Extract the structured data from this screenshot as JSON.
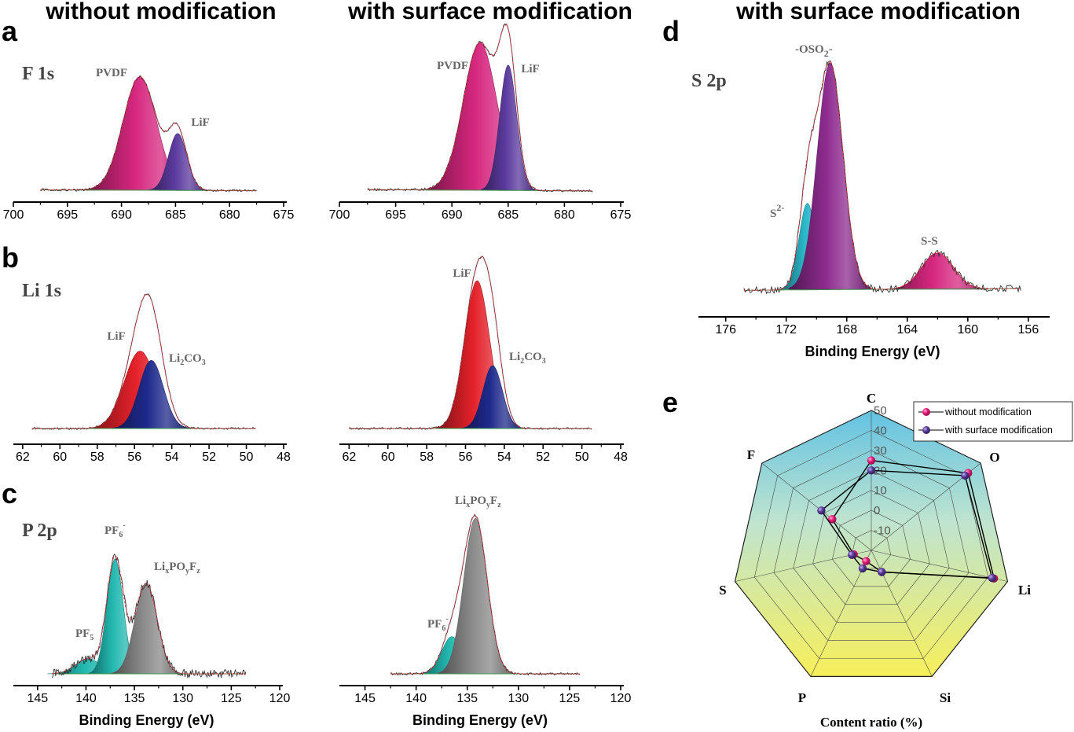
{
  "titles": {
    "left": "without modification",
    "middle": "with surface modification",
    "right": "with surface modification"
  },
  "panel_letters": [
    "a",
    "b",
    "c",
    "d",
    "e"
  ],
  "colors": {
    "pvdf": "#d6277f",
    "lif_fs": "#5b3a9e",
    "lif_li": "#e4212a",
    "li2co3": "#1f2a8c",
    "pf6": "#22b8b0",
    "lixpoyfz": "#8a8a8a",
    "pf5": "#22b8b0",
    "s2": "#2bb8c9",
    "oso2": "#8e2c8f",
    "ss": "#d6277f",
    "without": "#e8197a",
    "with": "#5a3b9a"
  },
  "chart_data": [
    {
      "id": "a-left",
      "type": "area",
      "element": "F 1s",
      "x_ticks": [
        700,
        695,
        690,
        685,
        680,
        675
      ],
      "xlim": [
        700,
        675
      ],
      "peaks": [
        {
          "label": "PVDF",
          "center": 688.3,
          "height": 0.76,
          "sigma": 1.55,
          "color_key": "pvdf"
        },
        {
          "label": "LiF",
          "center": 684.8,
          "height": 0.38,
          "sigma": 0.85,
          "color_key": "lif_fs"
        }
      ]
    },
    {
      "id": "a-right",
      "type": "area",
      "element": "",
      "x_ticks": [
        700,
        695,
        690,
        685,
        680,
        675
      ],
      "xlim": [
        700,
        675
      ],
      "peaks": [
        {
          "label": "PVDF",
          "center": 687.5,
          "height": 0.92,
          "sigma": 1.5,
          "color_key": "pvdf"
        },
        {
          "label": "LiF",
          "center": 685.0,
          "height": 0.78,
          "sigma": 0.75,
          "color_key": "lif_fs"
        }
      ]
    },
    {
      "id": "b-left",
      "type": "area",
      "element": "Li 1s",
      "x_ticks": [
        62,
        60,
        58,
        56,
        54,
        52,
        50,
        48
      ],
      "xlim": [
        62.5,
        48
      ],
      "peaks": [
        {
          "label": "LiF",
          "center": 55.7,
          "height": 0.5,
          "sigma": 0.85,
          "color_key": "lif_li"
        },
        {
          "label": "Li2CO3",
          "center": 55.1,
          "height": 0.44,
          "sigma": 0.65,
          "color_key": "li2co3"
        }
      ]
    },
    {
      "id": "b-right",
      "type": "area",
      "element": "",
      "x_ticks": [
        62,
        60,
        58,
        56,
        54,
        52,
        50,
        48
      ],
      "xlim": [
        62.5,
        48
      ],
      "peaks": [
        {
          "label": "LiF",
          "center": 55.4,
          "height": 0.8,
          "sigma": 0.65,
          "color_key": "lif_li"
        },
        {
          "label": "Li2CO3",
          "center": 54.6,
          "height": 0.34,
          "sigma": 0.5,
          "color_key": "li2co3"
        }
      ]
    },
    {
      "id": "c-left",
      "type": "area",
      "element": "P 2p",
      "x_ticks": [
        145,
        140,
        135,
        130,
        125,
        120
      ],
      "xlim": [
        147.5,
        120
      ],
      "xlabel": "Binding Energy (eV)",
      "peaks": [
        {
          "label": "PF5",
          "center": 139.8,
          "height": 0.1,
          "sigma": 1.3,
          "color_key": "pf5"
        },
        {
          "label": "PF6-",
          "center": 137.0,
          "height": 0.76,
          "sigma": 0.85,
          "color_key": "pf6"
        },
        {
          "label": "LixPOyFz",
          "center": 133.8,
          "height": 0.6,
          "sigma": 1.15,
          "color_key": "lixpoyfz"
        }
      ]
    },
    {
      "id": "c-right",
      "type": "area",
      "element": "",
      "x_ticks": [
        145,
        140,
        135,
        130,
        125,
        120
      ],
      "xlim": [
        147.5,
        120
      ],
      "xlabel": "Binding Energy (eV)",
      "peaks": [
        {
          "label": "PF6-",
          "center": 136.5,
          "height": 0.22,
          "sigma": 1.0,
          "color_key": "pf6"
        },
        {
          "label": "LixPOyFz",
          "center": 134.2,
          "height": 0.92,
          "sigma": 1.15,
          "color_key": "lixpoyfz"
        }
      ]
    },
    {
      "id": "d",
      "type": "area",
      "element": "S 2p",
      "x_ticks": [
        176,
        172,
        168,
        164,
        160,
        156
      ],
      "xlim": [
        177.8,
        154.8
      ],
      "xlabel": "Binding Energy (eV)",
      "peaks": [
        {
          "label": "S2-",
          "center": 170.6,
          "height": 0.38,
          "sigma": 0.55,
          "color_key": "s2"
        },
        {
          "label": "-OSO2-",
          "center": 169.1,
          "height": 1.0,
          "sigma": 0.85,
          "color_key": "oso2"
        },
        {
          "label": "S-S",
          "center": 162.0,
          "height": 0.16,
          "sigma": 1.05,
          "color_key": "ss"
        }
      ]
    },
    {
      "id": "e",
      "type": "radar",
      "categories": [
        "C",
        "O",
        "Li",
        "Si",
        "P",
        "S",
        "F"
      ],
      "r_ticks": [
        50,
        40,
        30,
        20,
        10,
        0,
        -10
      ],
      "r_range": [
        -20,
        50
      ],
      "xlabel": "Content ratio (%)",
      "series": [
        {
          "name": "without modification",
          "color_key": "without",
          "values": [
            25,
            42,
            43,
            -8,
            -14,
            -11,
            5
          ]
        },
        {
          "name": "with surface modification",
          "color_key": "with",
          "values": [
            20,
            40,
            42,
            -8,
            -10,
            -10,
            12
          ]
        }
      ]
    }
  ]
}
